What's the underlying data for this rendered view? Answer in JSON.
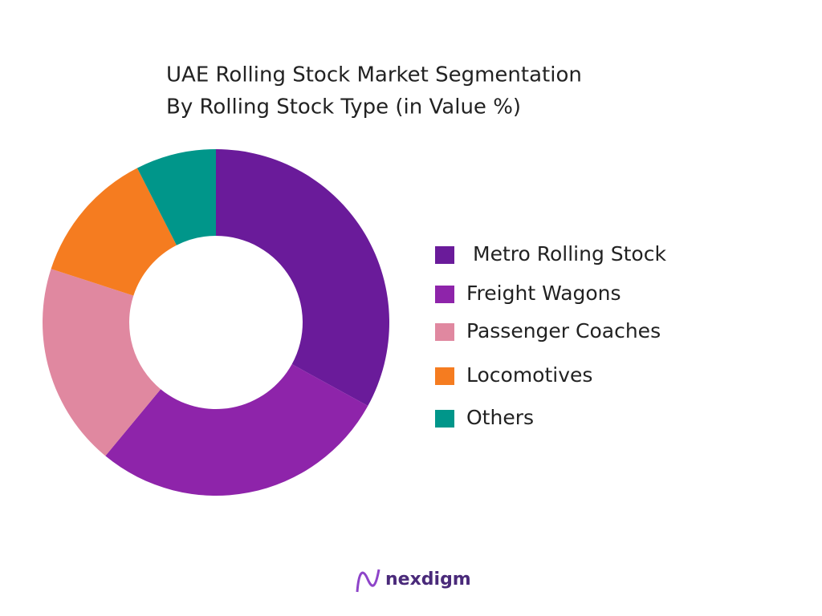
{
  "chart_data": {
    "type": "donut",
    "title": [
      "UAE Rolling Stock Market Segmentation",
      "By Rolling Stock Type (in Value %)"
    ],
    "categories": [
      "Metro Rolling Stock",
      "Freight Wagons",
      "Passenger Coaches",
      "Locomotives",
      "Others"
    ],
    "values": [
      33,
      28,
      19,
      12.5,
      7.5
    ],
    "colors": [
      "#6a1b9a",
      "#8e24aa",
      "#e088a0",
      "#f57c20",
      "#00968a"
    ],
    "legend": "right"
  },
  "brand": "nexdigm"
}
